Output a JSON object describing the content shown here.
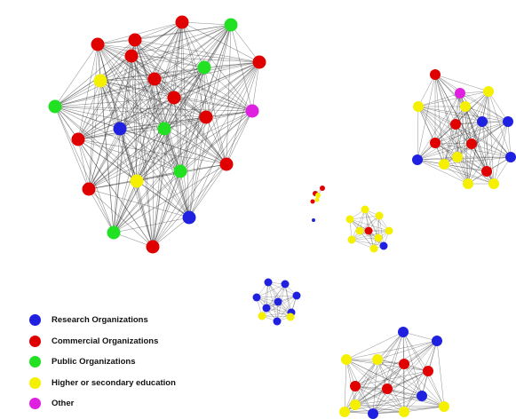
{
  "categories": [
    {
      "id": "research",
      "label": "Research Organizations",
      "color": "#2020e0"
    },
    {
      "id": "commercial",
      "label": "Commercial Organizations",
      "color": "#e00000"
    },
    {
      "id": "public",
      "label": "Public Organizations",
      "color": "#22e022"
    },
    {
      "id": "higher_education",
      "label": "Higher or secondary education",
      "color": "#f5f000"
    },
    {
      "id": "other",
      "label": "Other",
      "color": "#e020e0"
    }
  ],
  "clusters": [
    {
      "id": "large-left",
      "node_categories": [
        "commercial",
        "commercial",
        "public",
        "commercial",
        "public",
        "commercial",
        "higher_education",
        "commercial",
        "commercial",
        "public",
        "other",
        "commercial",
        "research",
        "commercial",
        "public",
        "commercial",
        "higher_education",
        "research",
        "public",
        "commercial",
        "commercial",
        "public",
        "commercial"
      ]
    },
    {
      "id": "right",
      "node_categories": [
        "commercial",
        "other",
        "higher_education",
        "higher_education",
        "commercial",
        "higher_education",
        "research",
        "research",
        "commercial",
        "commercial",
        "higher_education",
        "research",
        "commercial",
        "higher_education",
        "higher_education",
        "higher_education",
        "research"
      ]
    },
    {
      "id": "bottom-right",
      "node_categories": [
        "research",
        "research",
        "higher_education",
        "commercial",
        "higher_education",
        "commercial",
        "research",
        "higher_education",
        "commercial",
        "commercial",
        "research",
        "higher_education",
        "higher_education",
        "higher_education"
      ]
    },
    {
      "id": "center-small",
      "node_categories": [
        "higher_education",
        "higher_education",
        "higher_education",
        "higher_education",
        "higher_education",
        "higher_education",
        "commercial",
        "higher_education",
        "higher_education",
        "research"
      ]
    },
    {
      "id": "left-small",
      "node_categories": [
        "research",
        "research",
        "research",
        "research",
        "research",
        "research",
        "higher_education",
        "research",
        "higher_education",
        "research"
      ]
    },
    {
      "id": "tiny-a",
      "node_categories": [
        "commercial",
        "commercial",
        "higher_education"
      ]
    },
    {
      "id": "tiny-b",
      "node_categories": [
        "commercial",
        "higher_education"
      ]
    },
    {
      "id": "tiny-c",
      "node_categories": [
        "research"
      ]
    }
  ]
}
